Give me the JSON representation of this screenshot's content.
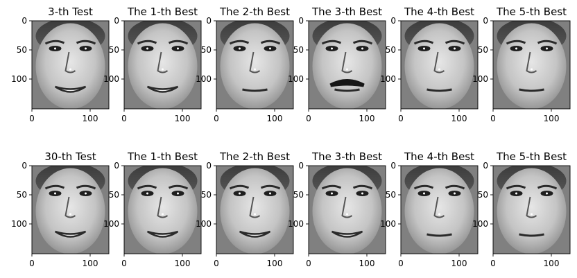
{
  "figure": {
    "background": "#ffffff",
    "panel_background": "#808080",
    "x_ticks": [
      "0",
      "100"
    ],
    "y_ticks": [
      "0",
      "50",
      "100"
    ],
    "rows": [
      {
        "panels": [
          {
            "title": "3-th Test",
            "icon": "face-photo-icon",
            "mustache": false,
            "smile": true
          },
          {
            "title": "The 1-th Best",
            "icon": "face-photo-icon",
            "mustache": false,
            "smile": true
          },
          {
            "title": "The 2-th Best",
            "icon": "face-photo-icon",
            "mustache": false,
            "smile": false
          },
          {
            "title": "The 3-th Best",
            "icon": "face-photo-icon",
            "mustache": true,
            "smile": false
          },
          {
            "title": "The 4-th Best",
            "icon": "face-photo-icon",
            "mustache": false,
            "smile": false
          },
          {
            "title": "The 5-th Best",
            "icon": "face-photo-icon",
            "mustache": false,
            "smile": false
          }
        ]
      },
      {
        "panels": [
          {
            "title": "30-th Test",
            "icon": "face-photo-icon",
            "mustache": false,
            "smile": true
          },
          {
            "title": "The 1-th Best",
            "icon": "face-photo-icon",
            "mustache": false,
            "smile": true
          },
          {
            "title": "The 2-th Best",
            "icon": "face-photo-icon",
            "mustache": false,
            "smile": true
          },
          {
            "title": "The 3-th Best",
            "icon": "face-photo-icon",
            "mustache": false,
            "smile": true
          },
          {
            "title": "The 4-th Best",
            "icon": "face-photo-icon",
            "mustache": false,
            "smile": false
          },
          {
            "title": "The 5-th Best",
            "icon": "face-photo-icon",
            "mustache": false,
            "smile": false
          }
        ]
      }
    ]
  }
}
